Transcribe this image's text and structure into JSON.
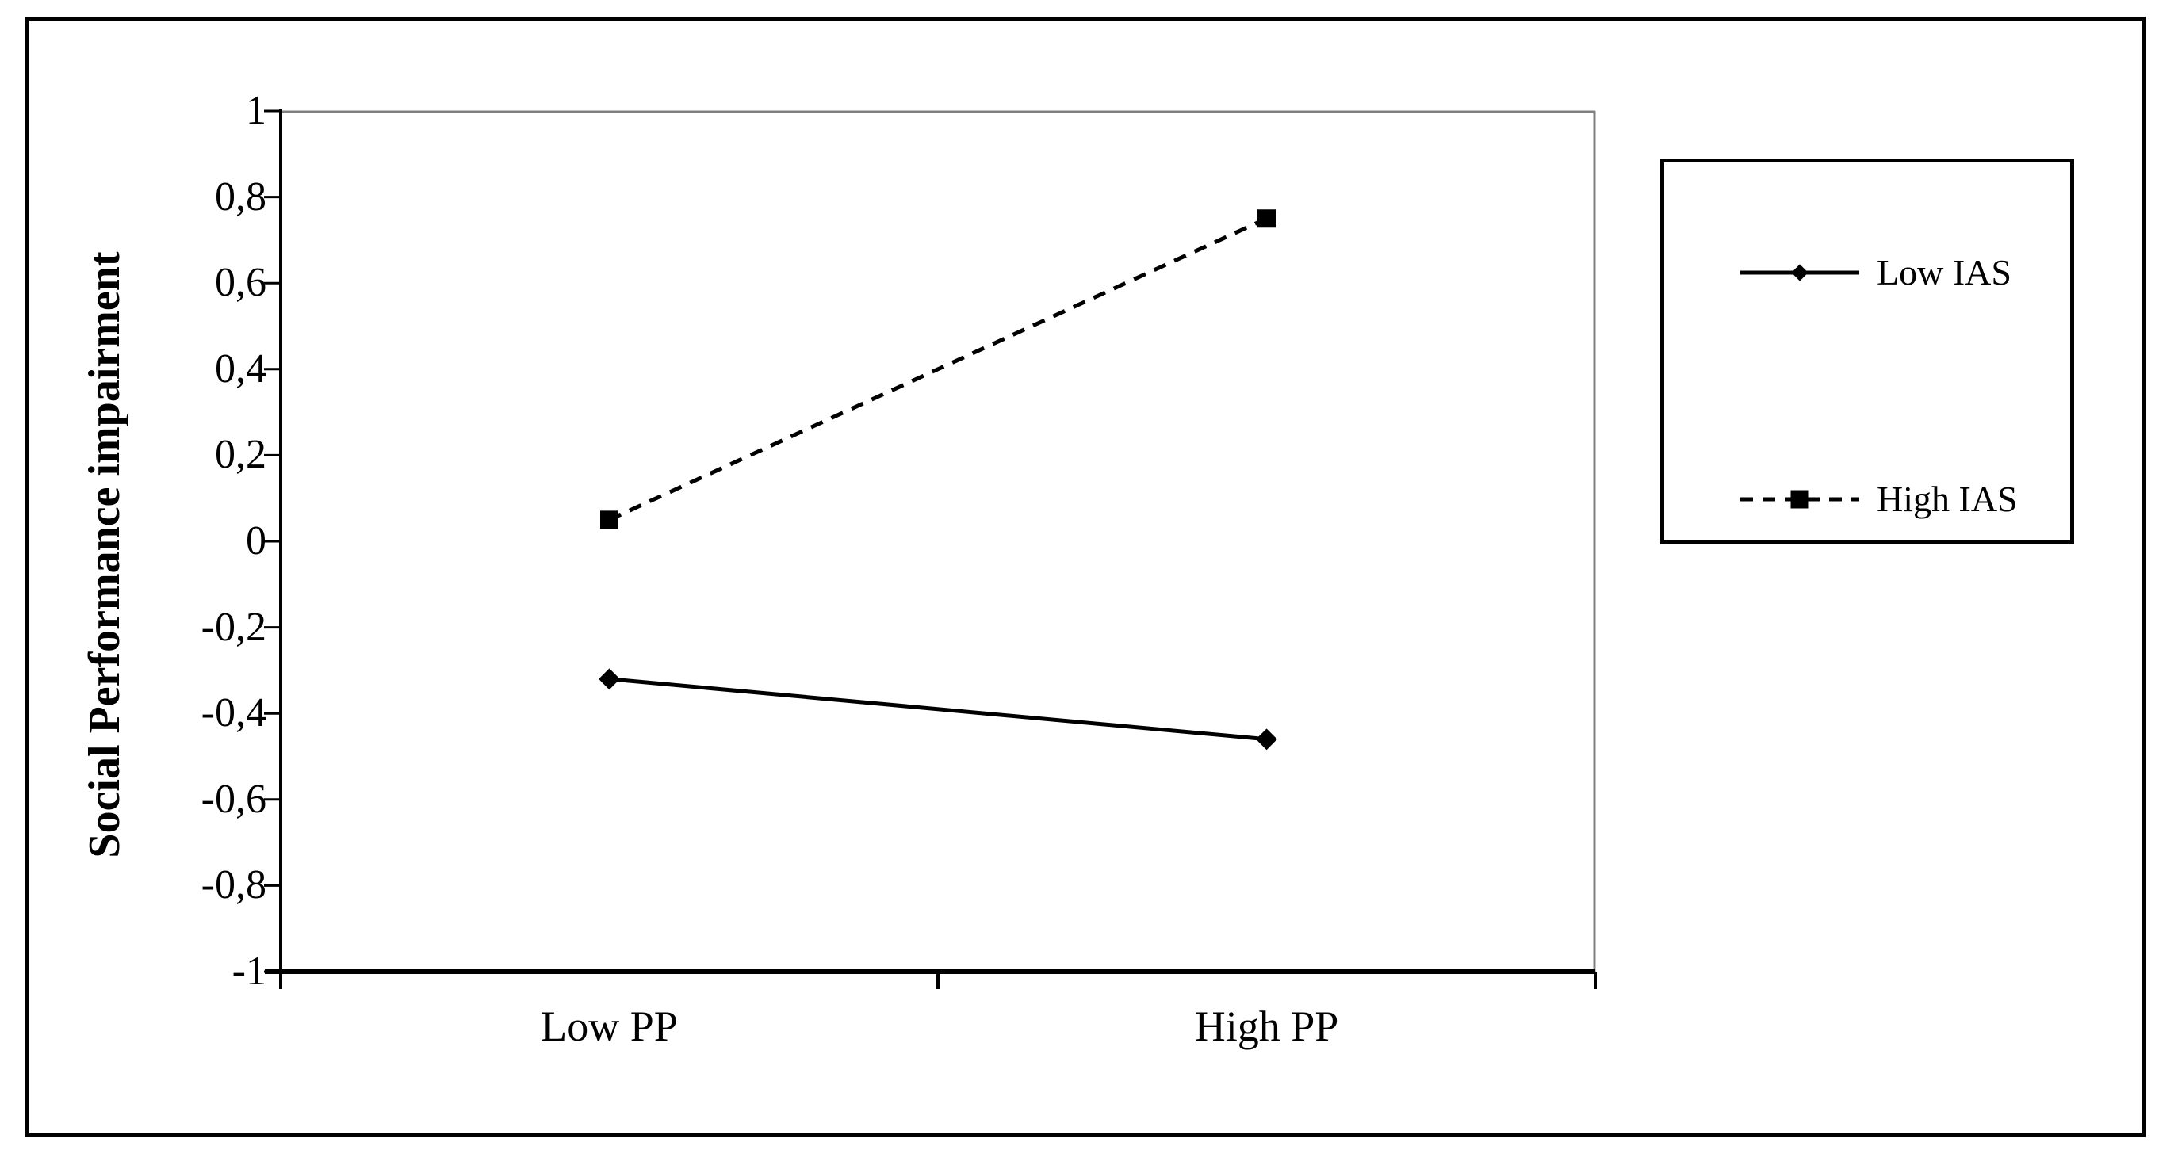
{
  "figure": {
    "background": "#ffffff",
    "border_color": "#000000"
  },
  "chart_data": {
    "type": "line",
    "title": "",
    "xlabel": "",
    "ylabel": "Social Performance impairment",
    "categories": [
      "Low PP",
      "High PP"
    ],
    "series": [
      {
        "name": "Low IAS",
        "values": [
          -0.32,
          -0.46
        ],
        "marker": "diamond",
        "line_style": "solid",
        "color": "#000000"
      },
      {
        "name": "High IAS",
        "values": [
          0.05,
          0.75
        ],
        "marker": "square",
        "line_style": "dashed",
        "color": "#000000"
      }
    ],
    "ylim": [
      -1,
      1
    ],
    "ytick_step": 0.2,
    "yticks": [
      {
        "value": 1,
        "label": "1"
      },
      {
        "value": 0.8,
        "label": "0,8"
      },
      {
        "value": 0.6,
        "label": "0,6"
      },
      {
        "value": 0.4,
        "label": "0,4"
      },
      {
        "value": 0.2,
        "label": "0,2"
      },
      {
        "value": 0,
        "label": "0"
      },
      {
        "value": -0.2,
        "label": "-0,2"
      },
      {
        "value": -0.4,
        "label": "-0,4"
      },
      {
        "value": -0.6,
        "label": "-0,6"
      },
      {
        "value": -0.8,
        "label": "-0,8"
      },
      {
        "value": -1,
        "label": "-1"
      }
    ],
    "grid": false,
    "legend_position": "right",
    "decimal_separator": ",",
    "colors": {
      "series": "#000000",
      "axis": "#000000",
      "frame_top_right": "#808080",
      "text": "#000000"
    }
  }
}
